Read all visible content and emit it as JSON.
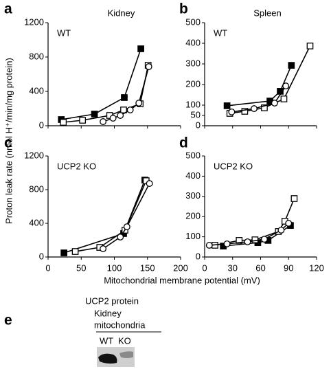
{
  "figure_labels": {
    "y_label": "Proton leak rate (nmol H⁺/min/mg protein)",
    "x_label": "Mitochondrial membrane potential (mV)"
  },
  "chart_data": [
    {
      "type": "line",
      "panel_label": "a",
      "title": "Kidney",
      "annotation": "WT",
      "xlim": [
        0,
        200
      ],
      "xticks": [
        0,
        50,
        100,
        150,
        200
      ],
      "x_tick_labels": false,
      "ylim": [
        0,
        1200
      ],
      "yticks": [
        0,
        400,
        800,
        1200
      ],
      "series": [
        {
          "marker": "square",
          "filled": true,
          "color": "#000000",
          "x": [
            20,
            70,
            115,
            140
          ],
          "values": [
            72,
            136,
            328,
            896
          ]
        },
        {
          "marker": "square",
          "filled": false,
          "color": "#000000",
          "x": [
            23,
            52,
            93,
            114,
            139,
            151
          ],
          "values": [
            40,
            64,
            120,
            184,
            256,
            704
          ]
        },
        {
          "marker": "circle",
          "filled": false,
          "color": "#000000",
          "x": [
            83,
            98,
            109,
            124,
            137,
            152
          ],
          "values": [
            48,
            88,
            120,
            184,
            264,
            688
          ]
        }
      ]
    },
    {
      "type": "line",
      "panel_label": "b",
      "title": "Spleen",
      "annotation": "WT",
      "xlim": [
        0,
        120
      ],
      "xticks": [
        0,
        30,
        60,
        90,
        120
      ],
      "x_tick_labels": false,
      "ylim": [
        0,
        500
      ],
      "yticks": [
        0,
        50,
        100,
        200,
        300,
        400,
        500
      ],
      "series": [
        {
          "marker": "square",
          "filled": true,
          "color": "#000000",
          "x": [
            24,
            70,
            81,
            93
          ],
          "values": [
            97,
            120,
            167,
            293
          ]
        },
        {
          "marker": "square",
          "filled": false,
          "color": "#000000",
          "x": [
            27,
            43,
            64,
            85,
            113
          ],
          "values": [
            60,
            70,
            87,
            130,
            387
          ]
        },
        {
          "marker": "circle",
          "filled": false,
          "color": "#000000",
          "x": [
            29,
            53,
            75,
            87
          ],
          "values": [
            67,
            83,
            110,
            193
          ]
        }
      ]
    },
    {
      "type": "line",
      "panel_label": "c",
      "annotation": "UCP2 KO",
      "xlim": [
        0,
        200
      ],
      "xticks": [
        0,
        50,
        100,
        150,
        200
      ],
      "x_tick_labels": true,
      "ylim": [
        0,
        1200
      ],
      "yticks": [
        0,
        400,
        800,
        1200
      ],
      "series": [
        {
          "marker": "square",
          "filled": true,
          "color": "#000000",
          "x": [
            24,
            114,
            146
          ],
          "values": [
            49,
            278,
            914
          ]
        },
        {
          "marker": "square",
          "filled": false,
          "color": "#000000",
          "x": [
            41,
            78,
            116,
            148
          ],
          "values": [
            65,
            114,
            318,
            906
          ]
        },
        {
          "marker": "circle",
          "filled": false,
          "color": "#000000",
          "x": [
            83,
            109,
            119,
            153
          ],
          "values": [
            98,
            237,
            359,
            873
          ]
        }
      ]
    },
    {
      "type": "line",
      "panel_label": "d",
      "annotation": "UCP2 KO",
      "xlim": [
        0,
        120
      ],
      "xticks": [
        0,
        30,
        60,
        90,
        120
      ],
      "x_tick_labels": true,
      "ylim": [
        0,
        500
      ],
      "yticks": [
        0,
        100,
        200,
        300,
        400,
        500
      ],
      "series": [
        {
          "marker": "square",
          "filled": true,
          "color": "#000000",
          "x": [
            20,
            57,
            68,
            92
          ],
          "values": [
            54,
            71,
            82,
            156
          ]
        },
        {
          "marker": "square",
          "filled": false,
          "color": "#000000",
          "x": [
            11,
            37,
            54,
            79,
            86,
            96
          ],
          "values": [
            58,
            82,
            85,
            126,
            177,
            289
          ]
        },
        {
          "marker": "circle",
          "filled": false,
          "color": "#000000",
          "x": [
            5,
            24,
            46,
            64,
            82,
            90
          ],
          "values": [
            58,
            65,
            75,
            88,
            133,
            167
          ]
        }
      ]
    }
  ],
  "panel_e": {
    "panel_label": "e",
    "title": "UCP2 protein",
    "subtitle_lines": [
      "Kidney",
      "mitochondria"
    ],
    "lanes": [
      "WT",
      "KO"
    ]
  }
}
